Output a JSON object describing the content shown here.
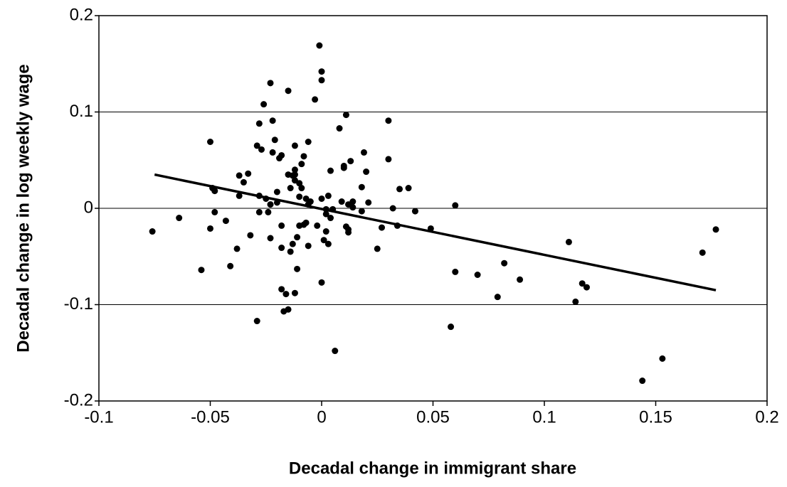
{
  "chart_data": {
    "type": "scatter",
    "x_label": "Decadal change in immigrant share",
    "y_label": "Decadal change in log weekly wage",
    "color": "#000000",
    "xlim": [
      -0.1,
      0.2
    ],
    "ylim": [
      -0.2,
      0.2
    ],
    "xticks": [
      -0.1,
      -0.05,
      0,
      0.05,
      0.1,
      0.15,
      0.2
    ],
    "yticks": [
      -0.2,
      -0.1,
      0,
      0.1,
      0.2
    ],
    "grid": true,
    "x": [
      -0.076,
      -0.064,
      -0.054,
      -0.05,
      -0.05,
      -0.049,
      -0.048,
      -0.048,
      -0.043,
      -0.041,
      -0.038,
      -0.037,
      -0.037,
      -0.035,
      -0.033,
      -0.032,
      -0.029,
      -0.029,
      -0.028,
      -0.028,
      -0.028,
      -0.027,
      -0.026,
      -0.025,
      -0.024,
      -0.023,
      -0.023,
      -0.023,
      -0.022,
      -0.022,
      -0.021,
      -0.02,
      -0.02,
      -0.019,
      -0.018,
      -0.018,
      -0.018,
      -0.018,
      -0.017,
      -0.016,
      -0.015,
      -0.015,
      -0.015,
      -0.014,
      -0.014,
      -0.013,
      -0.013,
      -0.012,
      -0.012,
      -0.012,
      -0.012,
      -0.012,
      -0.011,
      -0.011,
      -0.01,
      -0.01,
      -0.01,
      -0.009,
      -0.009,
      -0.008,
      -0.008,
      -0.007,
      -0.007,
      -0.006,
      -0.006,
      -0.006,
      -0.005,
      -0.003,
      -0.002,
      -0.001,
      0.0,
      0.0,
      0.0,
      0.0,
      0.001,
      0.002,
      0.002,
      0.002,
      0.003,
      0.003,
      0.004,
      0.004,
      0.005,
      0.006,
      0.008,
      0.009,
      0.01,
      0.01,
      0.011,
      0.011,
      0.012,
      0.012,
      0.012,
      0.013,
      0.014,
      0.014,
      0.018,
      0.018,
      0.019,
      0.02,
      0.021,
      0.025,
      0.027,
      0.03,
      0.03,
      0.032,
      0.034,
      0.035,
      0.039,
      0.042,
      0.049,
      0.058,
      0.06,
      0.06,
      0.07,
      0.079,
      0.082,
      0.089,
      0.111,
      0.114,
      0.117,
      0.119,
      0.144,
      0.153,
      0.171,
      0.177
    ],
    "y": [
      -0.024,
      -0.01,
      -0.064,
      0.069,
      -0.021,
      0.021,
      0.018,
      -0.004,
      -0.013,
      -0.06,
      -0.042,
      0.034,
      0.013,
      0.027,
      0.036,
      -0.028,
      0.065,
      -0.117,
      0.088,
      0.013,
      -0.004,
      0.061,
      0.108,
      0.01,
      -0.004,
      0.004,
      0.13,
      -0.031,
      0.058,
      0.091,
      0.071,
      0.006,
      0.017,
      0.052,
      0.055,
      -0.018,
      -0.041,
      -0.084,
      -0.107,
      -0.089,
      0.035,
      0.122,
      -0.105,
      -0.045,
      0.021,
      -0.037,
      0.034,
      0.035,
      0.065,
      0.04,
      0.029,
      -0.088,
      -0.063,
      -0.03,
      0.026,
      -0.018,
      0.012,
      0.046,
      0.021,
      -0.017,
      0.054,
      -0.015,
      0.01,
      0.069,
      0.004,
      -0.039,
      0.007,
      0.113,
      -0.018,
      0.169,
      -0.077,
      0.142,
      0.133,
      0.01,
      -0.033,
      -0.024,
      -0.001,
      -0.006,
      -0.037,
      0.013,
      -0.01,
      0.039,
      -0.001,
      -0.148,
      0.083,
      0.007,
      0.044,
      0.042,
      -0.019,
      0.097,
      0.004,
      -0.022,
      -0.025,
      0.049,
      0.001,
      0.007,
      -0.003,
      0.022,
      0.058,
      0.038,
      0.006,
      -0.042,
      -0.02,
      0.091,
      0.051,
      0.0,
      -0.018,
      0.02,
      0.021,
      -0.003,
      -0.021,
      -0.123,
      0.003,
      -0.066,
      -0.069,
      -0.092,
      -0.057,
      -0.074,
      -0.035,
      -0.097,
      -0.078,
      -0.082,
      -0.179,
      -0.156,
      -0.046,
      -0.022
    ],
    "trend_line": {
      "x": [
        -0.075,
        0.177
      ],
      "y": [
        0.035,
        -0.085
      ]
    }
  }
}
